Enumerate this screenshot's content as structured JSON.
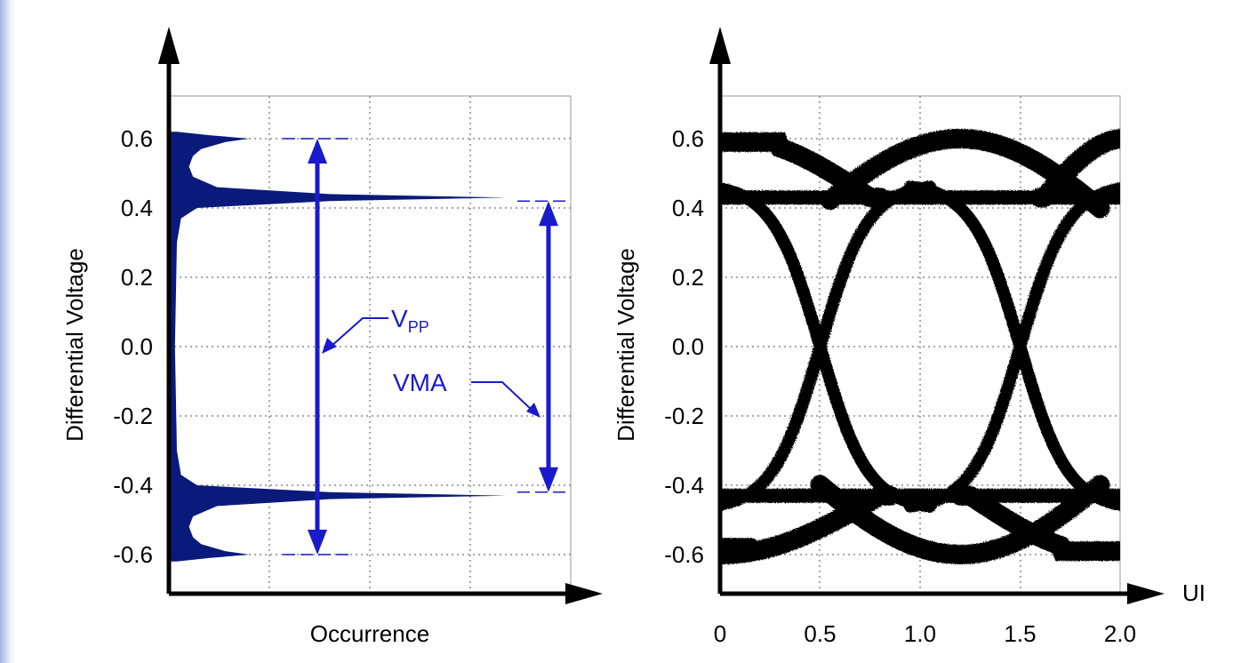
{
  "chart_data": [
    {
      "type": "histogram",
      "ylabel": "Differential Voltage",
      "xlabel": "Occurrence",
      "yticks": [
        "0.6",
        "0.4",
        "0.2",
        "0.0",
        "-0.2",
        "-0.4",
        "-0.6"
      ],
      "ylim": [
        -0.72,
        0.72
      ],
      "grid": true,
      "fill_color": "#0a1a7a",
      "annotation_color": "#1a1acc",
      "series": [
        {
          "values": [
            {
              "v": 0.62,
              "occ": 0.02
            },
            {
              "v": 0.61,
              "occ": 0.1
            },
            {
              "v": 0.6,
              "occ": 0.2
            },
            {
              "v": 0.59,
              "occ": 0.14
            },
            {
              "v": 0.57,
              "occ": 0.08
            },
            {
              "v": 0.55,
              "occ": 0.06
            },
            {
              "v": 0.52,
              "occ": 0.05
            },
            {
              "v": 0.49,
              "occ": 0.06
            },
            {
              "v": 0.46,
              "occ": 0.12
            },
            {
              "v": 0.44,
              "occ": 0.4
            },
            {
              "v": 0.43,
              "occ": 0.84
            },
            {
              "v": 0.42,
              "occ": 0.4
            },
            {
              "v": 0.4,
              "occ": 0.07
            },
            {
              "v": 0.37,
              "occ": 0.03
            },
            {
              "v": 0.3,
              "occ": 0.02
            },
            {
              "v": 0.0,
              "occ": 0.015
            },
            {
              "v": -0.3,
              "occ": 0.02
            },
            {
              "v": -0.37,
              "occ": 0.03
            },
            {
              "v": -0.4,
              "occ": 0.07
            },
            {
              "v": -0.42,
              "occ": 0.4
            },
            {
              "v": -0.43,
              "occ": 0.84
            },
            {
              "v": -0.44,
              "occ": 0.4
            },
            {
              "v": -0.46,
              "occ": 0.12
            },
            {
              "v": -0.49,
              "occ": 0.06
            },
            {
              "v": -0.52,
              "occ": 0.05
            },
            {
              "v": -0.55,
              "occ": 0.06
            },
            {
              "v": -0.57,
              "occ": 0.08
            },
            {
              "v": -0.59,
              "occ": 0.14
            },
            {
              "v": -0.6,
              "occ": 0.2
            },
            {
              "v": -0.61,
              "occ": 0.1
            },
            {
              "v": -0.62,
              "occ": 0.02
            }
          ]
        }
      ],
      "annotations": [
        {
          "label": "V",
          "subscript": "PP",
          "from": -0.6,
          "to": 0.6
        },
        {
          "label": "VMA",
          "from": -0.42,
          "to": 0.42
        }
      ]
    },
    {
      "type": "line",
      "subtype": "eye-diagram",
      "ylabel": "Differential Voltage",
      "xlabel": "UI",
      "xticks": [
        "0",
        "0.5",
        "1.0",
        "1.5",
        "2.0"
      ],
      "yticks": [
        "0.6",
        "0.4",
        "0.2",
        "0.0",
        "-0.2",
        "-0.4",
        "-0.6"
      ],
      "xlim": [
        0,
        2.0
      ],
      "ylim": [
        -0.72,
        0.72
      ],
      "grid": true,
      "trace_color": "#000000",
      "high_level": 0.43,
      "low_level": -0.43,
      "peak_level": 0.6,
      "crossings": [
        0.5,
        1.5
      ]
    }
  ]
}
